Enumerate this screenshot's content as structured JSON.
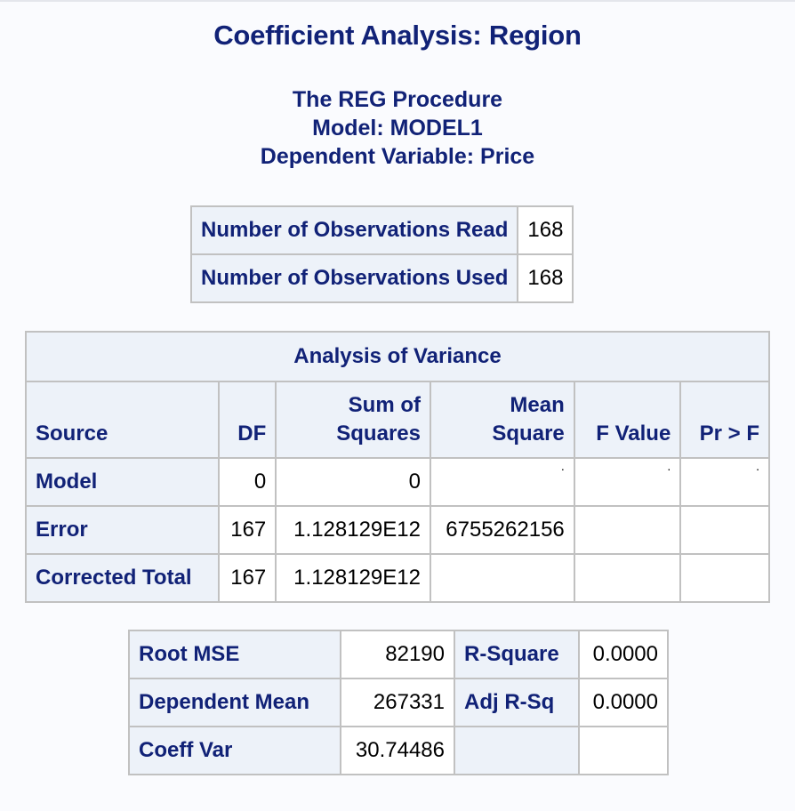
{
  "title": "Coefficient Analysis: Region",
  "procedure": {
    "line1": "The REG Procedure",
    "line2": "Model: MODEL1",
    "line3": "Dependent Variable: Price"
  },
  "observations": [
    {
      "label": "Number of Observations Read",
      "value": "168"
    },
    {
      "label": "Number of Observations Used",
      "value": "168"
    }
  ],
  "anova": {
    "caption": "Analysis of Variance",
    "headers": {
      "source": "Source",
      "df": "DF",
      "ss_line1": "Sum of",
      "ss_line2": "Squares",
      "ms_line1": "Mean",
      "ms_line2": "Square",
      "fvalue": "F Value",
      "prf": "Pr > F"
    },
    "rows": [
      {
        "source": "Model",
        "df": "0",
        "ss": "0",
        "ms": ".",
        "fvalue": ".",
        "prf": "."
      },
      {
        "source": "Error",
        "df": "167",
        "ss": "1.128129E12",
        "ms": "6755262156",
        "fvalue": "",
        "prf": ""
      },
      {
        "source": "Corrected Total",
        "df": "167",
        "ss": "1.128129E12",
        "ms": "",
        "fvalue": "",
        "prf": ""
      }
    ]
  },
  "fit": [
    {
      "label1": "Root MSE",
      "value1": "82190",
      "label2": "R-Square",
      "value2": "0.0000"
    },
    {
      "label1": "Dependent Mean",
      "value1": "267331",
      "label2": "Adj R-Sq",
      "value2": "0.0000"
    },
    {
      "label1": "Coeff Var",
      "value1": "30.74486",
      "label2": "",
      "value2": ""
    }
  ]
}
